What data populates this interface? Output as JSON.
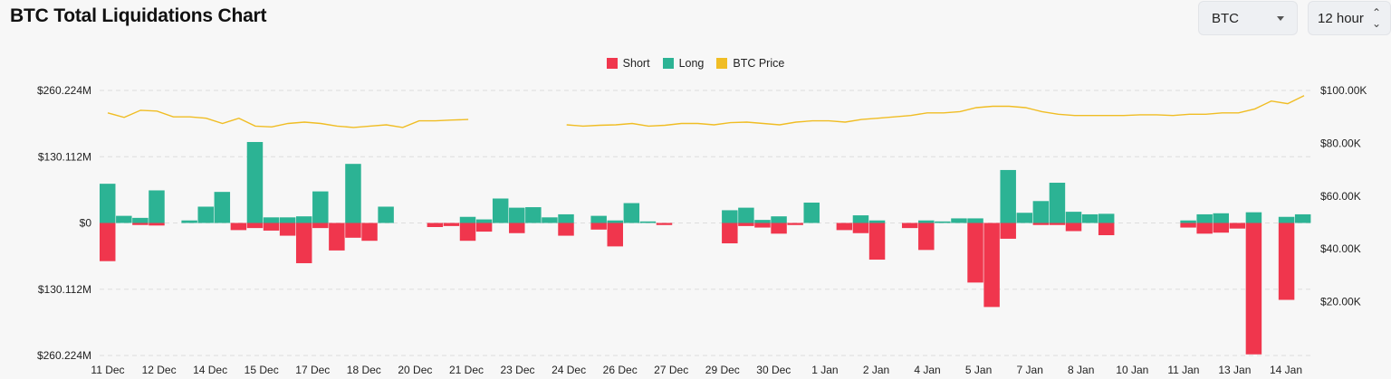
{
  "title": "BTC Total Liquidations Chart",
  "controls": {
    "coin_value": "BTC",
    "coin_icon": "chevron-down-icon",
    "interval_value": "12 hour",
    "interval_icon": "updown-chevron-icon"
  },
  "colors": {
    "short": "#f0364d",
    "long": "#2cb394",
    "price": "#f0bd24",
    "grid": "#dddddd"
  },
  "legend": [
    "Short",
    "Long",
    "BTC Price"
  ],
  "chart_data": {
    "type": "bar",
    "title": "BTC Total Liquidations Chart",
    "grid": true,
    "legend_position": "top-center",
    "left_axis": {
      "ticks": [
        "$260.224M",
        "$130.112M",
        "$0",
        "$130.112M",
        "$260.224M"
      ],
      "range": [
        -260.224,
        260.224
      ],
      "unit": "M USD"
    },
    "right_axis": {
      "ticks": [
        "$100.00K",
        "$80.00K",
        "$60.00K",
        "$40.00K",
        "$20.00K"
      ],
      "range": [
        0,
        100000
      ]
    },
    "x_ticks": [
      "11 Dec",
      "12 Dec",
      "14 Dec",
      "15 Dec",
      "17 Dec",
      "18 Dec",
      "20 Dec",
      "21 Dec",
      "23 Dec",
      "24 Dec",
      "26 Dec",
      "27 Dec",
      "29 Dec",
      "30 Dec",
      "1 Jan",
      "2 Jan",
      "4 Jan",
      "5 Jan",
      "7 Jan",
      "8 Jan",
      "10 Jan",
      "11 Jan",
      "13 Jan",
      "14 Jan"
    ],
    "series": [
      {
        "name": "Long",
        "values": [
          77,
          14,
          10,
          64,
          0,
          5,
          32,
          61,
          0,
          159,
          11,
          11,
          13,
          62,
          0,
          116,
          0,
          32,
          0,
          0,
          0,
          0,
          12,
          7,
          48,
          30,
          31,
          11,
          17,
          0,
          14,
          5,
          39,
          3,
          0,
          0,
          0,
          0,
          25,
          30,
          6,
          13,
          0,
          40,
          0,
          0,
          15,
          5,
          0,
          0,
          5,
          3,
          9,
          9,
          0,
          104,
          20,
          43,
          79,
          22,
          17,
          18,
          0,
          0,
          0,
          0,
          5,
          17,
          19,
          0,
          21,
          0,
          12,
          17
        ]
      },
      {
        "name": "Short",
        "values": [
          -75,
          0,
          -4,
          -5,
          0,
          0,
          0,
          0,
          -14,
          -10,
          -15,
          -25,
          -79,
          -10,
          -54,
          -29,
          -35,
          0,
          0,
          0,
          -8,
          -6,
          -35,
          -17,
          0,
          -20,
          0,
          0,
          -25,
          0,
          -13,
          -46,
          0,
          0,
          -4,
          0,
          0,
          0,
          -40,
          -6,
          -9,
          -21,
          -4,
          0,
          0,
          -14,
          -20,
          -72,
          0,
          -10,
          -53,
          0,
          0,
          -117,
          -165,
          -31,
          0,
          -4,
          -4,
          -16,
          0,
          -24,
          0,
          0,
          0,
          0,
          -9,
          -21,
          -19,
          -11,
          -258,
          0,
          -151,
          0
        ]
      },
      {
        "name": "BTC Price",
        "values": [
          91500,
          89800,
          92500,
          92200,
          90000,
          90000,
          89500,
          87500,
          89500,
          86500,
          86200,
          87500,
          88000,
          87500,
          86500,
          86000,
          86500,
          87000,
          86000,
          88500,
          88500,
          88800,
          89000,
          null,
          null,
          null,
          null,
          null,
          87000,
          86500,
          86800,
          87000,
          87500,
          86500,
          86800,
          87500,
          87500,
          87000,
          87800,
          88000,
          87500,
          87000,
          88000,
          88500,
          88500,
          88000,
          89000,
          89500,
          90000,
          90500,
          91500,
          91500,
          92000,
          93500,
          94000,
          94000,
          93500,
          92000,
          91000,
          90500,
          90500,
          90500,
          90500,
          90800,
          90800,
          90500,
          91000,
          91000,
          91500,
          91500,
          93000,
          96000,
          95000,
          98000
        ]
      }
    ]
  }
}
